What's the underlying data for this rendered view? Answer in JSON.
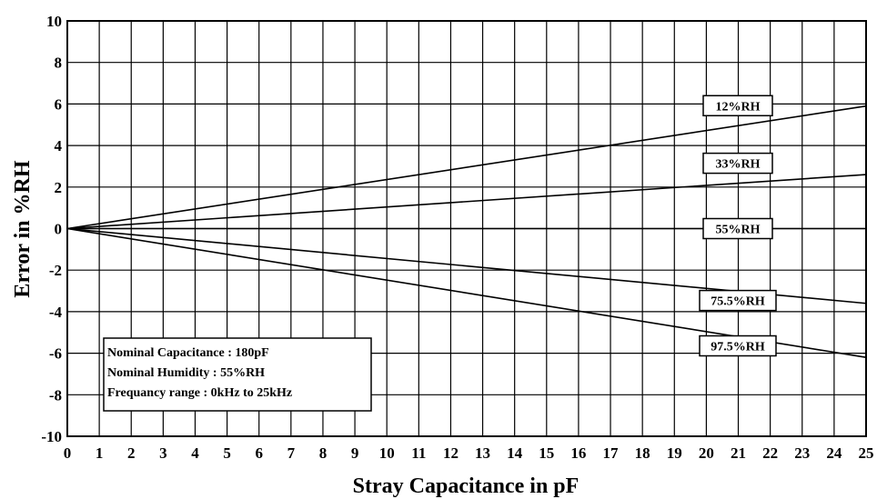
{
  "chart_data": {
    "type": "line",
    "xlabel": "Stray Capacitance in pF",
    "ylabel": "Error in %RH",
    "xlim": [
      0,
      25
    ],
    "ylim": [
      -10,
      10
    ],
    "x_ticks": [
      0,
      1,
      2,
      3,
      4,
      5,
      6,
      7,
      8,
      9,
      10,
      11,
      12,
      13,
      14,
      15,
      16,
      17,
      18,
      19,
      20,
      21,
      22,
      23,
      24,
      25
    ],
    "y_ticks": [
      -10,
      -8,
      -6,
      -4,
      -2,
      0,
      2,
      4,
      6,
      8,
      10
    ],
    "grid": true,
    "series": [
      {
        "name": "12%RH",
        "x": [
          0,
          25
        ],
        "y": [
          0,
          5.9
        ]
      },
      {
        "name": "33%RH",
        "x": [
          0,
          25
        ],
        "y": [
          0,
          2.6
        ]
      },
      {
        "name": "55%RH",
        "x": [
          0,
          25
        ],
        "y": [
          0,
          0
        ]
      },
      {
        "name": "75.5%RH",
        "x": [
          0,
          25
        ],
        "y": [
          0,
          -3.6
        ]
      },
      {
        "name": "97.5%RH",
        "x": [
          0,
          25
        ],
        "y": [
          0,
          -6.2
        ]
      }
    ],
    "annotation_lines": [
      "Nominal Capacitance : 180pF",
      "Nominal Humidity : 55%RH",
      "Frequancy range : 0kHz to 25kHz"
    ]
  }
}
